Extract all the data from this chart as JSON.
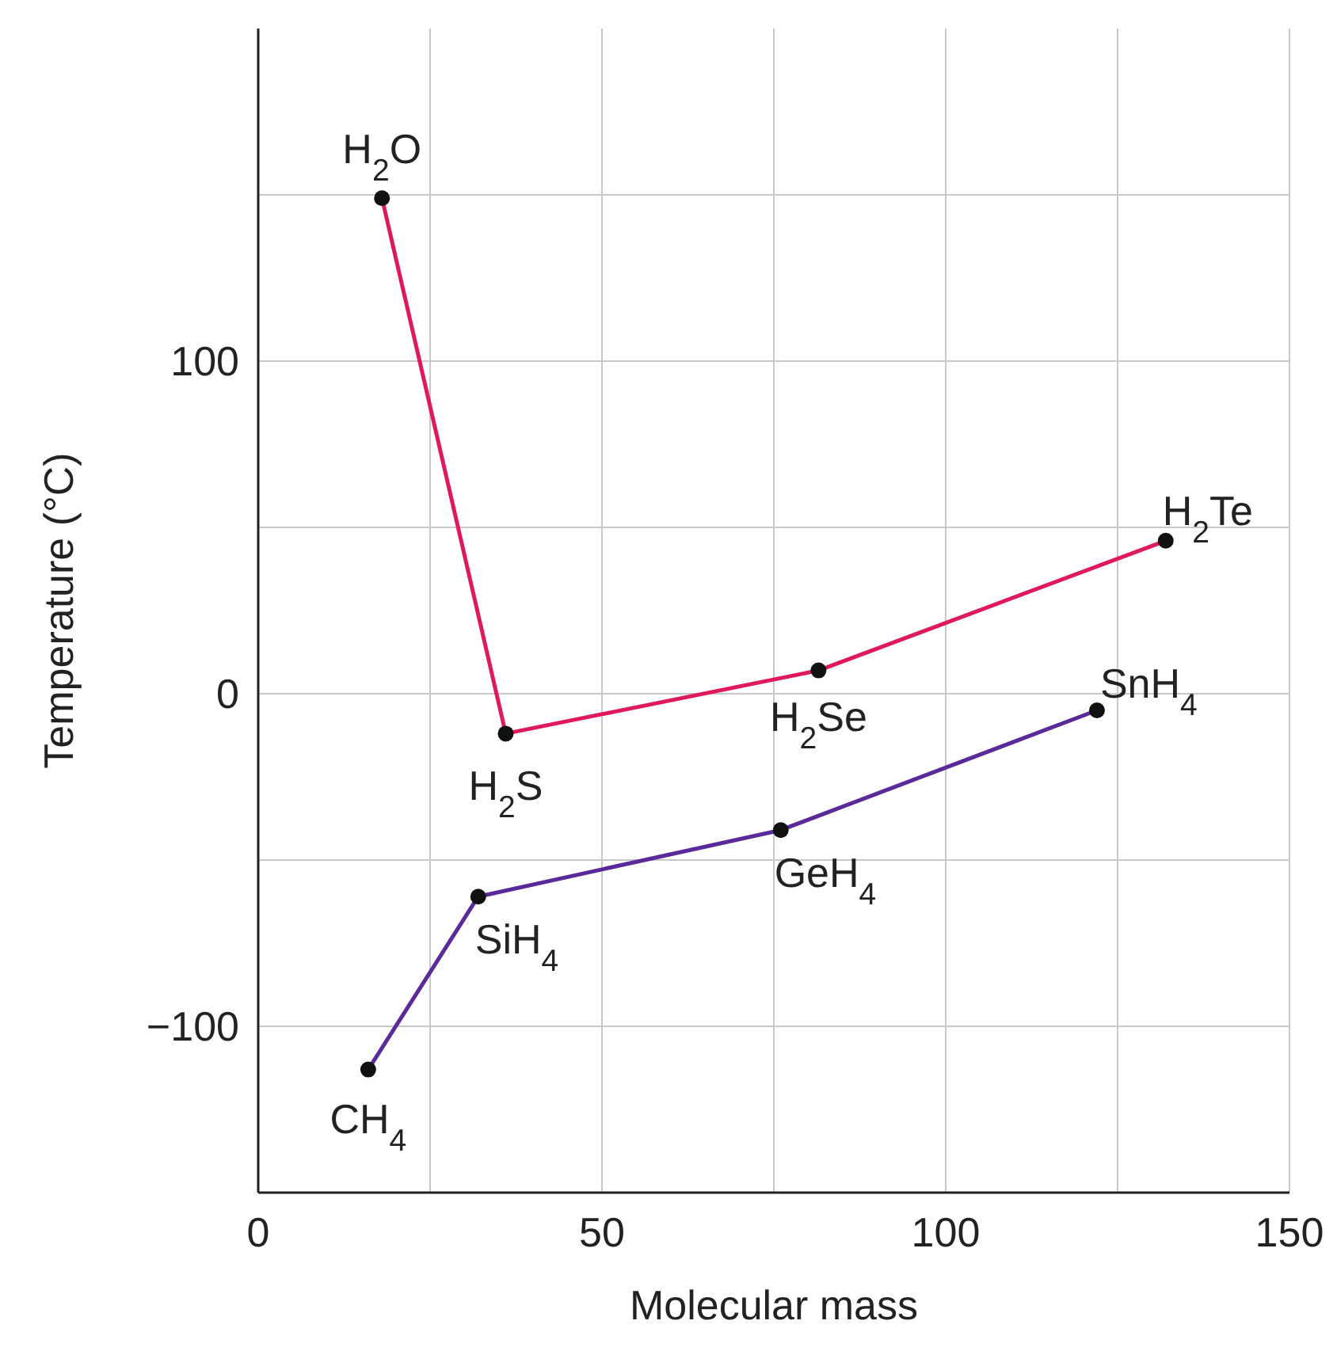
{
  "chart_data": {
    "type": "line",
    "xlabel": "Molecular mass",
    "ylabel": "Temperature (°C)",
    "xlim": [
      0,
      150
    ],
    "ylim": [
      -150,
      200
    ],
    "xticks": [
      0,
      {
        "value": 25,
        "label": null
      },
      50,
      {
        "value": 75,
        "label": null
      },
      100,
      {
        "value": 125,
        "label": null
      },
      150
    ],
    "yticks": [
      {
        "value": -150,
        "label": null
      },
      -100,
      {
        "value": -50,
        "label": null
      },
      0,
      {
        "value": 50,
        "label": null
      },
      100,
      {
        "value": 150,
        "label": null
      }
    ],
    "grid": true,
    "marker": "circle",
    "line_style": "solid",
    "series": [
      {
        "color": "#e0195a",
        "x": [
          18,
          36,
          81.5,
          132
        ],
        "values": [
          149,
          -12,
          7,
          46
        ]
      },
      {
        "color": "#5b2a9a",
        "x": [
          16,
          32,
          76,
          122
        ],
        "values": [
          -113,
          -61,
          -41,
          -5
        ]
      }
    ],
    "annotations": [
      {
        "text": "H$_{2}$O",
        "x": 18,
        "y": 149
      },
      {
        "text": "H$_{2}$S",
        "x": 36,
        "y": -12
      },
      {
        "text": "H$_{2}$Se",
        "x": 81.5,
        "y": 7
      },
      {
        "text": "H$_{2}$Te",
        "x": 132,
        "y": 46
      },
      {
        "text": "CH$_{4}$",
        "x": 16,
        "y": -113
      },
      {
        "text": "SiH$_{4}$",
        "x": 32,
        "y": -61
      },
      {
        "text": "GeH$_{4}$",
        "x": 76,
        "y": -41
      },
      {
        "text": "SnH$_{4}$",
        "x": 122,
        "y": -5
      }
    ]
  }
}
